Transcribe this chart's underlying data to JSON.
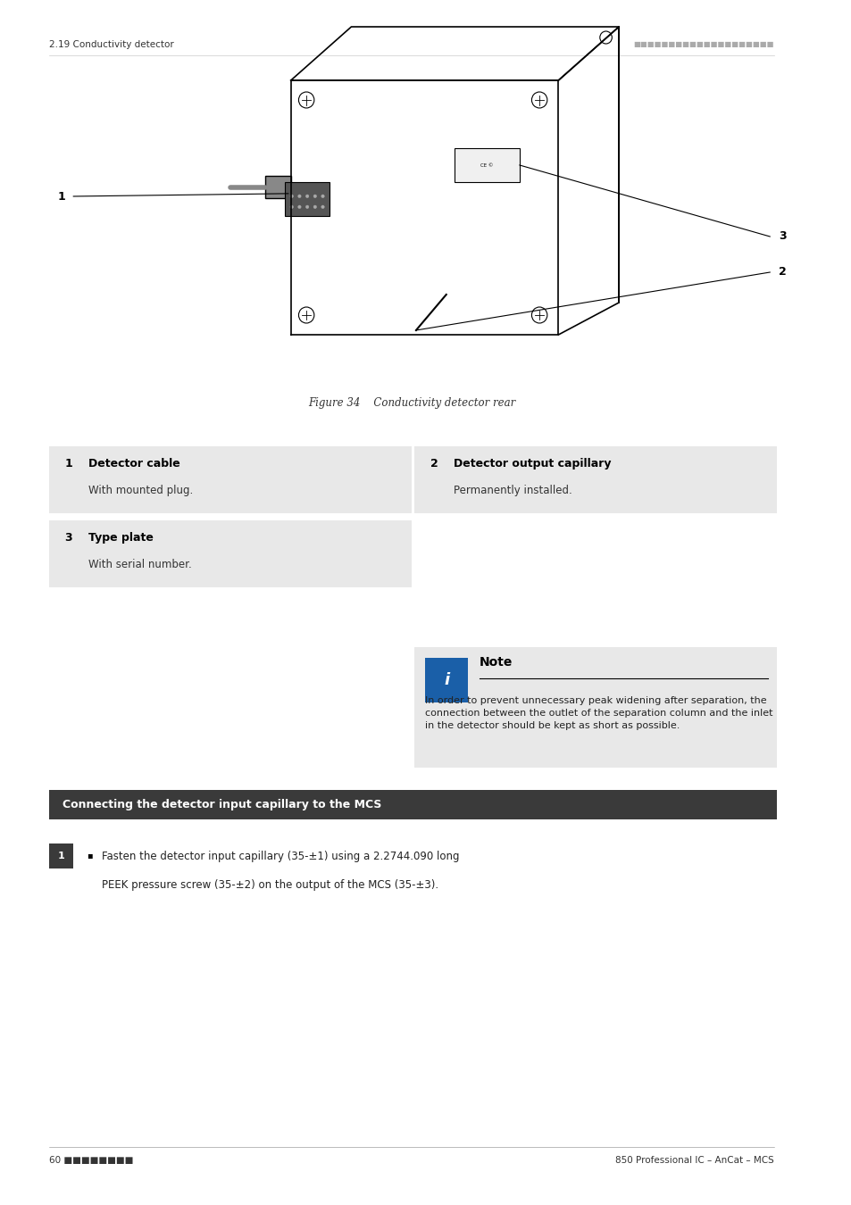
{
  "background_color": "#ffffff",
  "page_width": 9.54,
  "page_height": 13.5,
  "header_left": "2.19 Conductivity detector",
  "header_right_dots": "===================",
  "figure_caption": "Figure 34    Conductivity detector rear",
  "items": [
    {
      "num": "1",
      "title": "Detector cable",
      "desc": "With mounted plug.",
      "col": 0
    },
    {
      "num": "2",
      "title": "Detector output capillary",
      "desc": "Permanently installed.",
      "col": 1
    },
    {
      "num": "3",
      "title": "Type plate",
      "desc": "With serial number.",
      "col": 0
    }
  ],
  "note_title": "Note",
  "note_text": "In order to prevent unnecessary peak widening after separation, the\nconnection between the outlet of the separation column and the inlet\nin the detector should be kept as short as possible.",
  "section_title": "Connecting the detector input capillary to the MCS",
  "step1_text": "Fasten the detector input capillary (35-±1) using a 2.2744.090 long\nPEEK pressure screw (35-±2) on the output of the MCS (35-±3).",
  "footer_left": "60 ■■■■■■■■",
  "footer_right": "850 Professional IC – AnCat – MCS",
  "box_bg": "#e8e8e8",
  "note_bg": "#e8e8e8",
  "section_title_bg": "#3a3a3a",
  "section_title_color": "#ffffff",
  "blue_icon_bg": "#1a5fa8",
  "step_num_bg": "#3a3a3a",
  "step_num_color": "#ffffff"
}
